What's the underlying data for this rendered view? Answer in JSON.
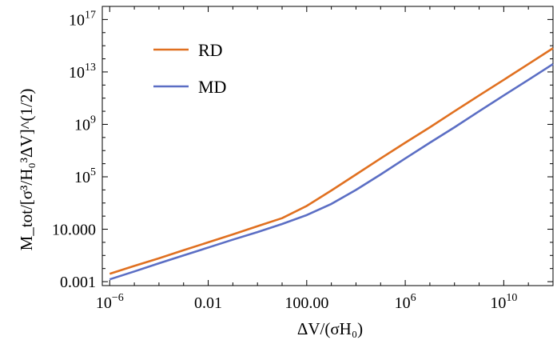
{
  "chart_data": {
    "type": "line",
    "title": "",
    "xlabel": "ΔV/(σH₀)",
    "ylabel": "M_tot/[σ³/H₀³ΔV]^(1/2)",
    "x_scale": "log",
    "y_scale": "log",
    "xlim": [
      5e-07,
      1000000000000.0
    ],
    "ylim": [
      0.0005,
      1e+18
    ],
    "grid": false,
    "legend_position": "top-left",
    "x_ticks": [
      {
        "value": 1e-06,
        "label": "10",
        "sup": "−6"
      },
      {
        "value": 0.01,
        "label": "0.01",
        "sup": ""
      },
      {
        "value": 100,
        "label": "100.00",
        "sup": ""
      },
      {
        "value": 1000000.0,
        "label": "10",
        "sup": "6"
      },
      {
        "value": 10000000000.0,
        "label": "10",
        "sup": "10"
      }
    ],
    "y_ticks": [
      {
        "value": 0.001,
        "label": "0.001",
        "sup": ""
      },
      {
        "value": 10,
        "label": "10.000",
        "sup": ""
      },
      {
        "value": 100000.0,
        "label": "10",
        "sup": "5"
      },
      {
        "value": 1000000000.0,
        "label": "10",
        "sup": "9"
      },
      {
        "value": 10000000000000.0,
        "label": "10",
        "sup": "13"
      },
      {
        "value": 1e+17,
        "label": "10",
        "sup": "17"
      }
    ],
    "series": [
      {
        "name": "RD",
        "color": "#e07020",
        "x": [
          1e-06,
          1e-05,
          0.0001,
          0.001,
          0.01,
          0.1,
          1,
          10,
          100,
          1000,
          10000.0,
          100000.0,
          1000000.0,
          10000000.0,
          100000000.0,
          1000000000.0,
          10000000000.0,
          100000000000.0,
          1000000000000.0
        ],
        "y": [
          0.004,
          0.016,
          0.06,
          0.25,
          1,
          4,
          17,
          70,
          600,
          9000,
          150000,
          2500000,
          40000000.0,
          600000000.0,
          10000000000.0,
          160000000000.0,
          2500000000000.0,
          40000000000000.0,
          650000000000000.0
        ]
      },
      {
        "name": "MD",
        "color": "#5b6ec4",
        "x": [
          1e-06,
          1e-05,
          0.0001,
          0.001,
          0.01,
          0.1,
          1,
          10,
          100,
          1000,
          10000.0,
          100000.0,
          1000000.0,
          10000000.0,
          100000000.0,
          1000000000.0,
          10000000000.0,
          100000000000.0,
          1000000000000.0
        ],
        "y": [
          0.0015,
          0.006,
          0.025,
          0.1,
          0.4,
          1.6,
          6,
          25,
          120,
          850,
          10000,
          150000,
          2500000,
          40000000.0,
          600000000.0,
          10000000000.0,
          160000000000.0,
          2500000000000.0,
          40000000000000.0
        ]
      }
    ]
  }
}
